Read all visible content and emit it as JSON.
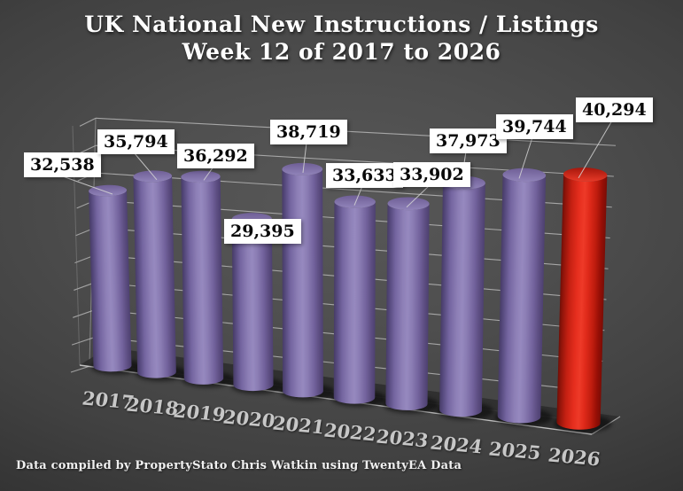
{
  "title": {
    "line1": "UK National New Instructions / Listings",
    "line2": "Week 12 of 2017 to 2026"
  },
  "footer": {
    "text": "Data compiled by PropertyStato Chris Watkin using TwentyEA Data"
  },
  "chart_data": {
    "type": "bar",
    "subtype": "3d-cylinder",
    "title": "UK National New Instructions / Listings Week 12 of 2017 to 2026",
    "categories": [
      "2017",
      "2018",
      "2019",
      "2020",
      "2021",
      "2022",
      "2023",
      "2024",
      "2025",
      "2026"
    ],
    "values": [
      32538,
      35794,
      36292,
      29395,
      38719,
      33633,
      33902,
      37973,
      39744,
      40294
    ],
    "labels": [
      "32,538",
      "35,794",
      "36,292",
      "29,395",
      "38,719",
      "33,633",
      "33,902",
      "37,973",
      "39,744",
      "40,294"
    ],
    "ylim": [
      0,
      45000
    ],
    "gridline_step": 5000,
    "grid": true,
    "legend": "none",
    "highlight_index": 9,
    "colors": {
      "bar": "#8577AB",
      "bar_highlight_year": "#E62E1E",
      "gridline": "#c8c8c8",
      "label_box_bg": "#ffffff",
      "label_text": "#0a0a0a",
      "category_text": "#c7c7c7",
      "title_text": "#ffffff"
    }
  }
}
